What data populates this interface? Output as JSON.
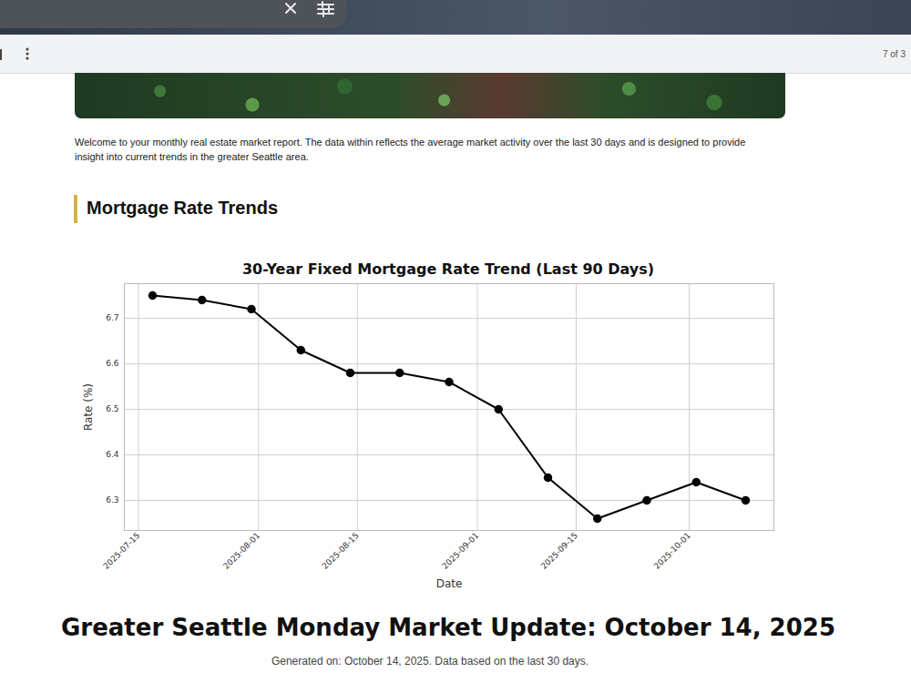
{
  "viewer": {
    "page_indicator": "7 of 3"
  },
  "document": {
    "intro": "Welcome to your monthly real estate market report. The data within reflects the average market activity over the last 30 days and is designed to provide insight into current trends in the greater Seattle area.",
    "section_heading": "Mortgage Rate Trends",
    "page_title": "Greater Seattle Monday Market Update: October 14, 2025",
    "generated": "Generated on: October 14, 2025. Data based on the last 30 days."
  },
  "chart_data": {
    "type": "line",
    "title": "30-Year Fixed Mortgage Rate Trend (Last 90 Days)",
    "x_label": "Date",
    "y_label": "Rate (%)",
    "x": [
      "2025-07-17",
      "2025-07-24",
      "2025-07-31",
      "2025-08-07",
      "2025-08-14",
      "2025-08-21",
      "2025-08-28",
      "2025-09-04",
      "2025-09-11",
      "2025-09-18",
      "2025-09-25",
      "2025-10-02",
      "2025-10-09"
    ],
    "values": [
      6.75,
      6.74,
      6.72,
      6.63,
      6.58,
      6.58,
      6.56,
      6.5,
      6.35,
      6.26,
      6.3,
      6.34,
      6.3
    ],
    "color": "#000000",
    "marker": "circle",
    "line_style": "solid",
    "xlim": [
      "2025-07-13",
      "2025-10-13"
    ],
    "xticks": [
      "2025-07-15",
      "2025-08-01",
      "2025-08-15",
      "2025-09-01",
      "2025-09-15",
      "2025-10-01"
    ],
    "ylim": [
      6.234,
      6.776
    ],
    "yticks": [
      6.3,
      6.4,
      6.5,
      6.6,
      6.7
    ],
    "grid": true
  }
}
